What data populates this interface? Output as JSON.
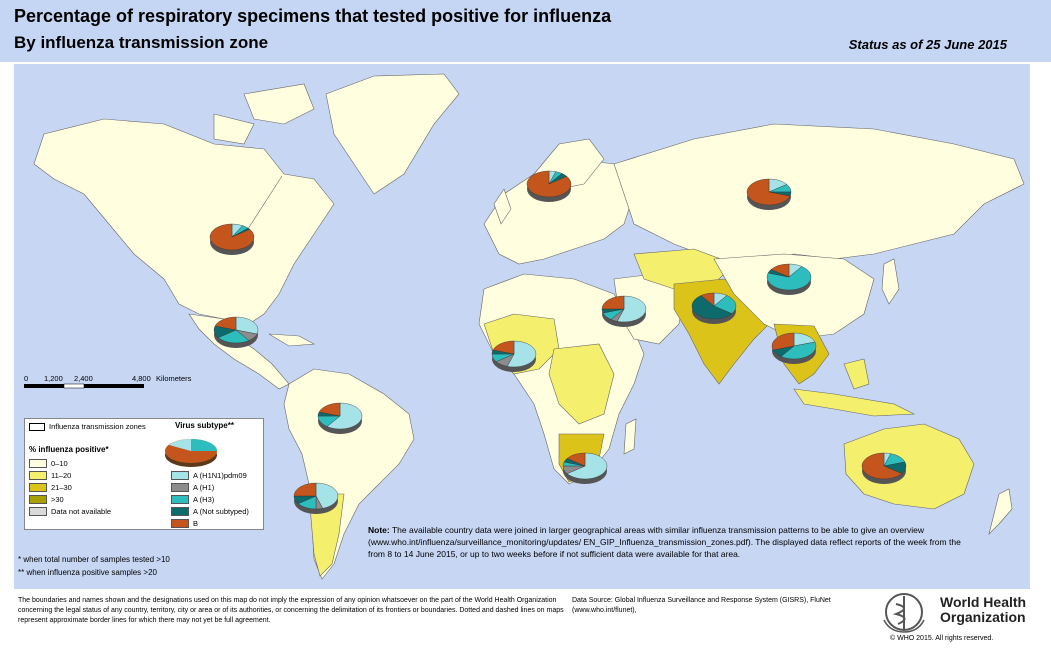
{
  "header": {
    "title_line1": "Percentage of respiratory specimens that tested positive for influenza",
    "title_line2": "By influenza transmission zone",
    "status": "Status as of 25 June 2015"
  },
  "scale_bar": {
    "ticks": [
      "0",
      "1,200",
      "2,400",
      "4,800"
    ],
    "unit": "Kilometers"
  },
  "legend": {
    "zones_label": "Influenza transmission zones",
    "positive_title": "% influenza positive*",
    "positive_classes": [
      {
        "label": "0–10",
        "color": "#ffffe0"
      },
      {
        "label": "11–20",
        "color": "#f5ef6e"
      },
      {
        "label": "21–30",
        "color": "#dcc31a"
      },
      {
        "label": ">30",
        "color": "#a8a000"
      },
      {
        "label": "Data not available",
        "color": "#d9d9d9"
      }
    ],
    "subtype_title": "Virus subtype**",
    "subtypes": [
      {
        "label": "A (H1N1)pdm09",
        "color": "#a6e3e8"
      },
      {
        "label": "A (H1)",
        "color": "#8c8c8c"
      },
      {
        "label": "A (H3)",
        "color": "#2ebdbd"
      },
      {
        "label": "A (Not subtyped)",
        "color": "#0e6b6b"
      },
      {
        "label": "B",
        "color": "#c4551c"
      }
    ]
  },
  "footnotes": {
    "samples": "*  when total number of samples tested >10",
    "positive": "** when influenza positive samples >20"
  },
  "note": {
    "label": "Note:",
    "text": "The available country data were joined in larger geographical areas with similar influenza transmission patterns to be able to give an overview (www.who.int/influenza/surveillance_monitoring/updates/ EN_GIP_Influenza_transmission_zones.pdf). The displayed data reflect reports of the week from the from 8 to 14 June 2015, or up to two weeks before if not sufficient data were available for that area."
  },
  "disclaimer": "The boundaries and names shown and the designations used on this map do not imply the expression of any opinion whatsoever on the part of the World Health Organization concerning the legal status of any country, territory, city or area or of its authorities, or concerning the delimitation of its frontiers or boundaries. Dotted and dashed lines on maps represent approximate border lines for which there may not yet be full agreement.",
  "data_source": "Data Source: Global Influenza Surveillance and Response System (GISRS), FluNet (www.who.int/flunet),",
  "who": {
    "name_line1": "World Health",
    "name_line2": "Organization",
    "copyright": "© WHO 2015. All rights reserved."
  },
  "pies": [
    {
      "zone": "North America",
      "slices": [
        0.08,
        0.0,
        0.05,
        0.02,
        0.85
      ]
    },
    {
      "zone": "Central America",
      "slices": [
        0.3,
        0.1,
        0.25,
        0.15,
        0.2
      ]
    },
    {
      "zone": "Tropical South America",
      "slices": [
        0.6,
        0.0,
        0.15,
        0.05,
        0.2
      ]
    },
    {
      "zone": "Temperate South America",
      "slices": [
        0.45,
        0.05,
        0.15,
        0.1,
        0.25
      ]
    },
    {
      "zone": "Northern Europe",
      "slices": [
        0.05,
        0.0,
        0.05,
        0.05,
        0.85
      ]
    },
    {
      "zone": "Eastern Europe",
      "slices": [
        0.15,
        0.0,
        0.1,
        0.05,
        0.7
      ]
    },
    {
      "zone": "Western Asia",
      "slices": [
        0.55,
        0.05,
        0.1,
        0.05,
        0.25
      ]
    },
    {
      "zone": "Western Africa",
      "slices": [
        0.55,
        0.1,
        0.1,
        0.05,
        0.2
      ]
    },
    {
      "zone": "Southern Asia",
      "slices": [
        0.1,
        0.0,
        0.25,
        0.55,
        0.1
      ]
    },
    {
      "zone": "Eastern Asia",
      "slices": [
        0.1,
        0.0,
        0.7,
        0.05,
        0.15
      ]
    },
    {
      "zone": "South-East Asia",
      "slices": [
        0.2,
        0.0,
        0.4,
        0.1,
        0.3
      ]
    },
    {
      "zone": "Southern Africa",
      "slices": [
        0.65,
        0.1,
        0.05,
        0.05,
        0.15
      ]
    },
    {
      "zone": "Oceania",
      "slices": [
        0.05,
        0.0,
        0.15,
        0.15,
        0.65
      ]
    }
  ]
}
